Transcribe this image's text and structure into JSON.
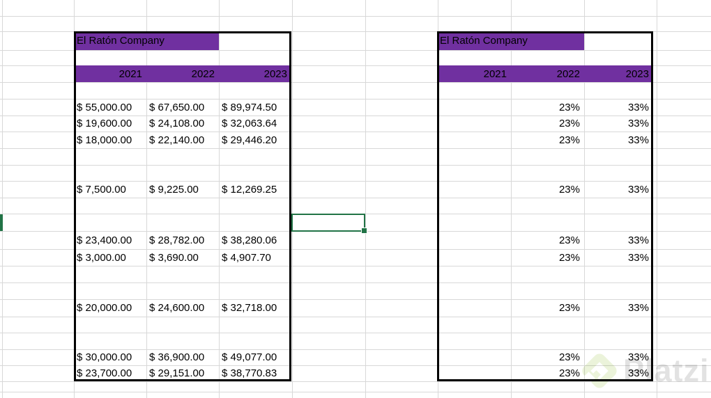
{
  "colors": {
    "header_fill": "#7030A0",
    "header_text": "#000000",
    "cell_text": "#000000",
    "table_border": "#000000",
    "gridline": "#d8d8d8",
    "selection_green": "#217346",
    "watermark_text_gray": "#e2e2e2",
    "watermark_logo_green": "#ebf3da"
  },
  "sheet": {
    "left_table": {
      "title": "El Ratón Company",
      "years": [
        "2021",
        "2022",
        "2023"
      ],
      "rows": [
        {
          "r": 6,
          "cells": [
            "$ 55,000.00",
            "$ 67,650.00",
            "$ 89,974.50"
          ]
        },
        {
          "r": 7,
          "cells": [
            "$ 19,600.00",
            "$ 24,108.00",
            "$ 32,063.64"
          ]
        },
        {
          "r": 8,
          "cells": [
            "$ 18,000.00",
            "$ 22,140.00",
            "$ 29,446.20"
          ]
        },
        {
          "r": 11,
          "cells": [
            "$ 7,500.00",
            "$ 9,225.00",
            "$ 12,269.25"
          ]
        },
        {
          "r": 14,
          "cells": [
            "$ 23,400.00",
            "$ 28,782.00",
            "$ 38,280.06"
          ]
        },
        {
          "r": 15,
          "cells": [
            "$ 3,000.00",
            "$ 3,690.00",
            "$ 4,907.70"
          ]
        },
        {
          "r": 18,
          "cells": [
            "$ 20,000.00",
            "$ 24,600.00",
            "$ 32,718.00"
          ]
        },
        {
          "r": 21,
          "cells": [
            "$ 30,000.00",
            "$ 36,900.00",
            "$ 49,077.00"
          ]
        },
        {
          "r": 22,
          "cells": [
            "$ 23,700.00",
            "$ 29,151.00",
            "$ 38,770.83"
          ]
        }
      ]
    },
    "right_table": {
      "title": "El Ratón Company",
      "years": [
        "2021",
        "2022",
        "2023"
      ],
      "rows": [
        {
          "r": 6,
          "cells": [
            "",
            "23%",
            "33%"
          ]
        },
        {
          "r": 7,
          "cells": [
            "",
            "23%",
            "33%"
          ]
        },
        {
          "r": 8,
          "cells": [
            "",
            "23%",
            "33%"
          ]
        },
        {
          "r": 11,
          "cells": [
            "",
            "23%",
            "33%"
          ]
        },
        {
          "r": 14,
          "cells": [
            "",
            "23%",
            "33%"
          ]
        },
        {
          "r": 15,
          "cells": [
            "",
            "23%",
            "33%"
          ]
        },
        {
          "r": 18,
          "cells": [
            "",
            "23%",
            "33%"
          ]
        },
        {
          "r": 21,
          "cells": [
            "",
            "23%",
            "33%"
          ]
        },
        {
          "r": 22,
          "cells": [
            "",
            "23%",
            "33%"
          ]
        }
      ]
    },
    "selected_cell": {
      "value": ""
    }
  },
  "watermark": {
    "text": "Platzi"
  }
}
